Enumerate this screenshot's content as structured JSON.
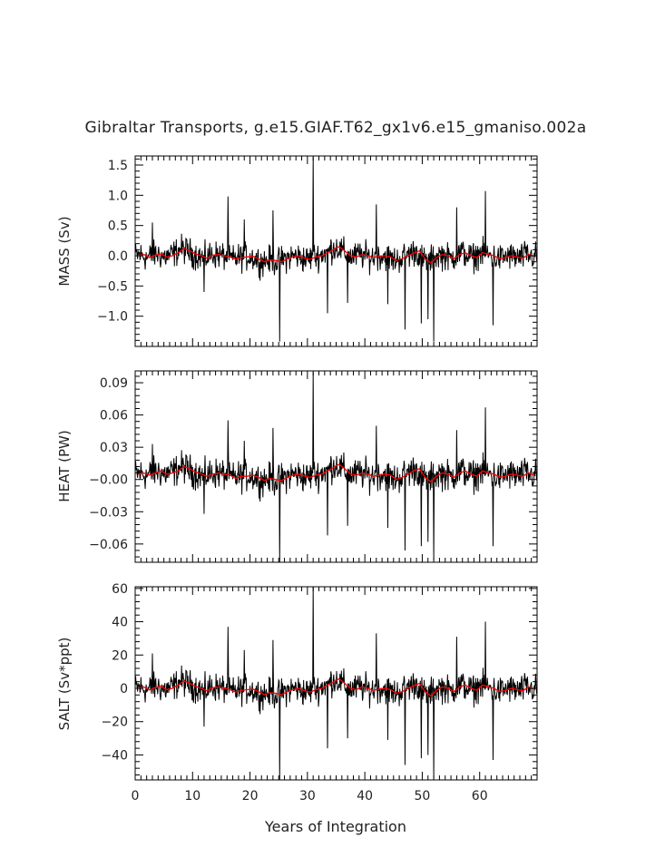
{
  "figure": {
    "title": "Gibraltar Transports, g.e15.GIAF.T62_gx1v6.e15_gmaniso.002a",
    "xlabel": "Years of Integration"
  },
  "colors": {
    "monthly": "#000000",
    "annual": "#ff0000",
    "axes": "#000000"
  },
  "chart_data": [
    {
      "type": "line",
      "ylabel": "MASS (Sv)",
      "xlim": [
        0,
        70
      ],
      "ylim": [
        -1.5,
        1.65
      ],
      "xticks": [
        0,
        10,
        20,
        30,
        40,
        50,
        60
      ],
      "xtick_labels": [
        "0",
        "10",
        "20",
        "30",
        "40",
        "50",
        "60"
      ],
      "yticks": [
        -1.0,
        -0.5,
        0.0,
        0.5,
        1.0,
        1.5
      ],
      "ytick_labels": [
        "−1.0",
        "−0.5",
        "0.0",
        "0.5",
        "1.0",
        "1.5"
      ],
      "noise_scale": 0.12,
      "spikes": [
        {
          "x": 25.2,
          "y": -1.42
        },
        {
          "x": 31.0,
          "y": 1.63
        },
        {
          "x": 16.2,
          "y": 0.98
        },
        {
          "x": 61.0,
          "y": 1.07
        },
        {
          "x": 52.0,
          "y": -1.42
        },
        {
          "x": 47.0,
          "y": -1.22
        },
        {
          "x": 62.3,
          "y": -1.15
        },
        {
          "x": 49.8,
          "y": -1.12
        },
        {
          "x": 51.0,
          "y": -1.05
        },
        {
          "x": 24.0,
          "y": 0.75
        },
        {
          "x": 33.5,
          "y": -0.95
        },
        {
          "x": 12.0,
          "y": -0.6
        },
        {
          "x": 42.0,
          "y": 0.85
        },
        {
          "x": 56.0,
          "y": 0.8
        },
        {
          "x": 37.0,
          "y": -0.78
        },
        {
          "x": 44.0,
          "y": -0.8
        },
        {
          "x": 19.0,
          "y": 0.6
        },
        {
          "x": 3.0,
          "y": 0.55
        }
      ],
      "annual": [
        0.0,
        0.02,
        -0.03,
        0.01,
        0.03,
        -0.02,
        0.0,
        0.05,
        0.12,
        0.08,
        0.03,
        0.0,
        -0.04,
        0.01,
        0.02,
        0.0,
        -0.02,
        -0.06,
        -0.03,
        -0.02,
        -0.01,
        -0.05,
        -0.1,
        -0.07,
        -0.08,
        -0.1,
        -0.05,
        -0.02,
        0.0,
        -0.04,
        -0.06,
        -0.02,
        0.0,
        0.05,
        0.1,
        0.15,
        0.08,
        0.0,
        -0.02,
        0.02,
        0.0,
        -0.03,
        -0.01,
        0.0,
        -0.02,
        -0.08,
        -0.05,
        0.0,
        0.04,
        0.08,
        -0.05,
        -0.12,
        -0.03,
        0.02,
        0.0,
        -0.05,
        0.02,
        0.05,
        0.0,
        -0.03,
        0.05,
        0.02,
        0.0,
        -0.05,
        -0.03,
        0.0,
        -0.02,
        -0.04,
        0.02,
        -0.01
      ]
    },
    {
      "type": "line",
      "ylabel": "HEAT (PW)",
      "xlim": [
        0,
        70
      ],
      "ylim": [
        -0.077,
        0.101
      ],
      "xticks": [
        0,
        10,
        20,
        30,
        40,
        50,
        60
      ],
      "xtick_labels": [
        "0",
        "10",
        "20",
        "30",
        "40",
        "50",
        "60"
      ],
      "yticks": [
        -0.06,
        -0.03,
        0.0,
        0.03,
        0.06,
        0.09
      ],
      "ytick_labels": [
        "−0.06",
        "−0.03",
        "−0.00",
        "0.03",
        "0.06",
        "0.09"
      ],
      "noise_scale": 0.0075,
      "spikes": [
        {
          "x": 25.2,
          "y": -0.077
        },
        {
          "x": 31.0,
          "y": 0.1
        },
        {
          "x": 16.2,
          "y": 0.055
        },
        {
          "x": 61.0,
          "y": 0.067
        },
        {
          "x": 52.0,
          "y": -0.075
        },
        {
          "x": 47.0,
          "y": -0.066
        },
        {
          "x": 62.3,
          "y": -0.062
        },
        {
          "x": 49.8,
          "y": -0.062
        },
        {
          "x": 51.0,
          "y": -0.058
        },
        {
          "x": 24.0,
          "y": 0.048
        },
        {
          "x": 33.5,
          "y": -0.052
        },
        {
          "x": 12.0,
          "y": -0.032
        },
        {
          "x": 42.0,
          "y": 0.05
        },
        {
          "x": 56.0,
          "y": 0.046
        },
        {
          "x": 37.0,
          "y": -0.043
        },
        {
          "x": 44.0,
          "y": -0.045
        },
        {
          "x": 19.0,
          "y": 0.036
        },
        {
          "x": 3.0,
          "y": 0.033
        }
      ],
      "annual": [
        0.005,
        0.006,
        0.004,
        0.006,
        0.008,
        0.005,
        0.006,
        0.008,
        0.012,
        0.01,
        0.007,
        0.005,
        0.003,
        0.005,
        0.006,
        0.005,
        0.004,
        0.001,
        0.003,
        0.003,
        0.004,
        0.002,
        -0.001,
        0.001,
        0.0,
        -0.001,
        0.002,
        0.004,
        0.005,
        0.003,
        0.002,
        0.004,
        0.005,
        0.008,
        0.011,
        0.014,
        0.01,
        0.005,
        0.004,
        0.006,
        0.005,
        0.003,
        0.004,
        0.005,
        0.004,
        0.0,
        0.002,
        0.005,
        0.008,
        0.01,
        0.002,
        -0.002,
        0.003,
        0.006,
        0.005,
        0.002,
        0.006,
        0.008,
        0.005,
        0.003,
        0.008,
        0.006,
        0.005,
        0.002,
        0.003,
        0.005,
        0.004,
        0.003,
        0.006,
        0.004
      ]
    },
    {
      "type": "line",
      "ylabel": "SALT (Sv*ppt)",
      "xlim": [
        0,
        70
      ],
      "ylim": [
        -55,
        61
      ],
      "xticks": [
        0,
        10,
        20,
        30,
        40,
        50,
        60
      ],
      "xtick_labels": [
        "0",
        "10",
        "20",
        "30",
        "40",
        "50",
        "60"
      ],
      "yticks": [
        -40,
        -20,
        0,
        20,
        40,
        60
      ],
      "ytick_labels": [
        "−40",
        "−20",
        "0",
        "20",
        "40",
        "60"
      ],
      "noise_scale": 4.5,
      "spikes": [
        {
          "x": 25.2,
          "y": -55
        },
        {
          "x": 31.0,
          "y": 61
        },
        {
          "x": 16.2,
          "y": 37
        },
        {
          "x": 61.0,
          "y": 40
        },
        {
          "x": 52.0,
          "y": -54
        },
        {
          "x": 47.0,
          "y": -46
        },
        {
          "x": 62.3,
          "y": -43
        },
        {
          "x": 49.8,
          "y": -42
        },
        {
          "x": 51.0,
          "y": -40
        },
        {
          "x": 24.0,
          "y": 29
        },
        {
          "x": 33.5,
          "y": -36
        },
        {
          "x": 12.0,
          "y": -23
        },
        {
          "x": 42.0,
          "y": 33
        },
        {
          "x": 56.0,
          "y": 31
        },
        {
          "x": 37.0,
          "y": -30
        },
        {
          "x": 44.0,
          "y": -31
        },
        {
          "x": 19.0,
          "y": 23
        },
        {
          "x": 3.0,
          "y": 21
        }
      ],
      "annual": [
        0.0,
        0.8,
        -1.0,
        0.4,
        1.2,
        -0.8,
        0.0,
        2.0,
        4.5,
        3.0,
        1.2,
        0.0,
        -1.5,
        0.4,
        0.8,
        0.0,
        -0.8,
        -2.3,
        -1.2,
        -0.8,
        -0.4,
        -2.0,
        -3.8,
        -2.7,
        -3.0,
        -3.8,
        -2.0,
        -0.8,
        0.0,
        -1.5,
        -2.3,
        -0.8,
        0.0,
        2.0,
        3.8,
        5.7,
        3.0,
        0.0,
        -0.8,
        0.8,
        0.0,
        -1.2,
        -0.4,
        0.0,
        -0.8,
        -3.0,
        -2.0,
        0.0,
        1.5,
        3.0,
        -2.0,
        -4.5,
        -1.2,
        0.8,
        0.0,
        -2.0,
        0.8,
        2.0,
        0.0,
        -1.2,
        2.0,
        0.8,
        0.0,
        -2.0,
        -1.2,
        0.0,
        -0.8,
        -1.5,
        0.8,
        -0.4
      ]
    }
  ]
}
